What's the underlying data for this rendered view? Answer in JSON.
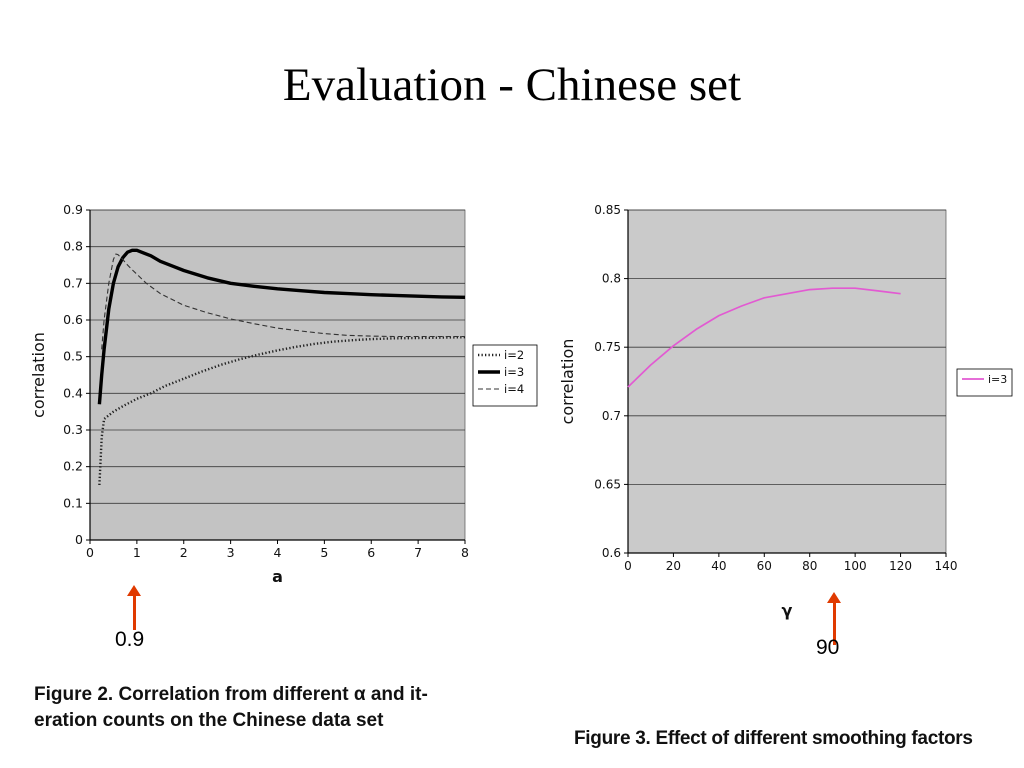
{
  "colors": {
    "arrow": "#e03a00",
    "magenta_series": "#e25ad2",
    "plot_background_left": "#c3c3c3",
    "plot_background_right": "#cacaca"
  },
  "slide": {
    "title": "Evaluation - Chinese set"
  },
  "figure2": {
    "caption_lines": [
      "Figure 2. Correlation from different α and it-",
      "eration counts on the Chinese data set"
    ],
    "annotation_label": "0.9"
  },
  "figure3": {
    "caption": "Figure 3. Effect of different smoothing factors",
    "annotation_label": "90"
  },
  "chart_data": [
    {
      "type": "line",
      "title": "",
      "xlabel": "a",
      "ylabel": "correlation",
      "xlim": [
        0,
        8
      ],
      "ylim": [
        0,
        0.9
      ],
      "xticks": [
        0,
        1,
        2,
        3,
        4,
        5,
        6,
        7,
        8
      ],
      "yticks": [
        0,
        0.1,
        0.2,
        0.3,
        0.4,
        0.5,
        0.6,
        0.7,
        0.8,
        0.9
      ],
      "ytick_labels": [
        "0",
        "0.1",
        "0.2",
        "0.3",
        "0.4",
        "0.5",
        "0.6",
        "0.7",
        "0.8",
        "0.9"
      ],
      "grid": "horizontal",
      "legend_position": "right",
      "plot_bg": "#c3c3c3",
      "series": [
        {
          "name": "i=2",
          "color": "#222222",
          "width": 2.4,
          "dash": "1.3 2.2",
          "x": [
            0.2,
            0.25,
            0.3,
            0.4,
            0.5,
            0.7,
            1.0,
            1.3,
            1.6,
            2.0,
            2.4,
            2.8,
            3.2,
            3.6,
            4.0,
            4.4,
            4.8,
            5.2,
            5.6,
            6.0,
            6.5,
            7.0,
            7.5,
            8.0
          ],
          "y": [
            0.15,
            0.28,
            0.33,
            0.34,
            0.35,
            0.365,
            0.385,
            0.4,
            0.42,
            0.44,
            0.46,
            0.478,
            0.493,
            0.506,
            0.517,
            0.527,
            0.535,
            0.541,
            0.545,
            0.548,
            0.55,
            0.551,
            0.552,
            0.553
          ]
        },
        {
          "name": "i=3",
          "color": "#000000",
          "width": 3.4,
          "dash": null,
          "x": [
            0.2,
            0.25,
            0.3,
            0.4,
            0.5,
            0.6,
            0.7,
            0.8,
            0.9,
            1.0,
            1.1,
            1.3,
            1.5,
            1.8,
            2.0,
            2.5,
            3.0,
            3.5,
            4.0,
            4.5,
            5.0,
            5.5,
            6.0,
            6.5,
            7.0,
            7.5,
            8.0
          ],
          "y": [
            0.37,
            0.45,
            0.52,
            0.63,
            0.7,
            0.745,
            0.77,
            0.785,
            0.79,
            0.79,
            0.785,
            0.775,
            0.76,
            0.745,
            0.735,
            0.715,
            0.7,
            0.692,
            0.685,
            0.68,
            0.675,
            0.672,
            0.669,
            0.667,
            0.665,
            0.663,
            0.662
          ]
        },
        {
          "name": "i=4",
          "color": "#333333",
          "width": 1.1,
          "dash": "5 3",
          "x": [
            0.25,
            0.3,
            0.4,
            0.5,
            0.55,
            0.6,
            0.7,
            0.8,
            0.9,
            1.0,
            1.2,
            1.5,
            2.0,
            2.5,
            3.0,
            3.5,
            4.0,
            4.5,
            5.0,
            5.5,
            6.0,
            6.5,
            7.0,
            7.5,
            8.0
          ],
          "y": [
            0.52,
            0.6,
            0.7,
            0.765,
            0.78,
            0.778,
            0.765,
            0.75,
            0.737,
            0.725,
            0.7,
            0.672,
            0.64,
            0.62,
            0.603,
            0.59,
            0.578,
            0.57,
            0.563,
            0.558,
            0.556,
            0.555,
            0.555,
            0.555,
            0.555
          ]
        }
      ]
    },
    {
      "type": "line",
      "title": "",
      "xlabel": "γ",
      "ylabel": "correlation",
      "xlim": [
        0,
        140
      ],
      "ylim": [
        0.6,
        0.85
      ],
      "xticks": [
        0,
        20,
        40,
        60,
        80,
        100,
        120,
        140
      ],
      "yticks": [
        0.6,
        0.65,
        0.7,
        0.75,
        0.8,
        0.85
      ],
      "ytick_labels": [
        "0.6",
        "0.65",
        "0.7",
        "0.75",
        "0.8",
        "0.85"
      ],
      "grid": "horizontal",
      "legend_position": "right",
      "plot_bg": "#cacaca",
      "series": [
        {
          "name": "i=3",
          "color": "#e25ad2",
          "width": 1.7,
          "dash": null,
          "x": [
            0,
            10,
            20,
            30,
            40,
            50,
            60,
            70,
            80,
            90,
            100,
            110,
            120
          ],
          "y": [
            0.721,
            0.737,
            0.751,
            0.763,
            0.773,
            0.78,
            0.786,
            0.789,
            0.792,
            0.793,
            0.793,
            0.791,
            0.789
          ]
        }
      ]
    }
  ]
}
